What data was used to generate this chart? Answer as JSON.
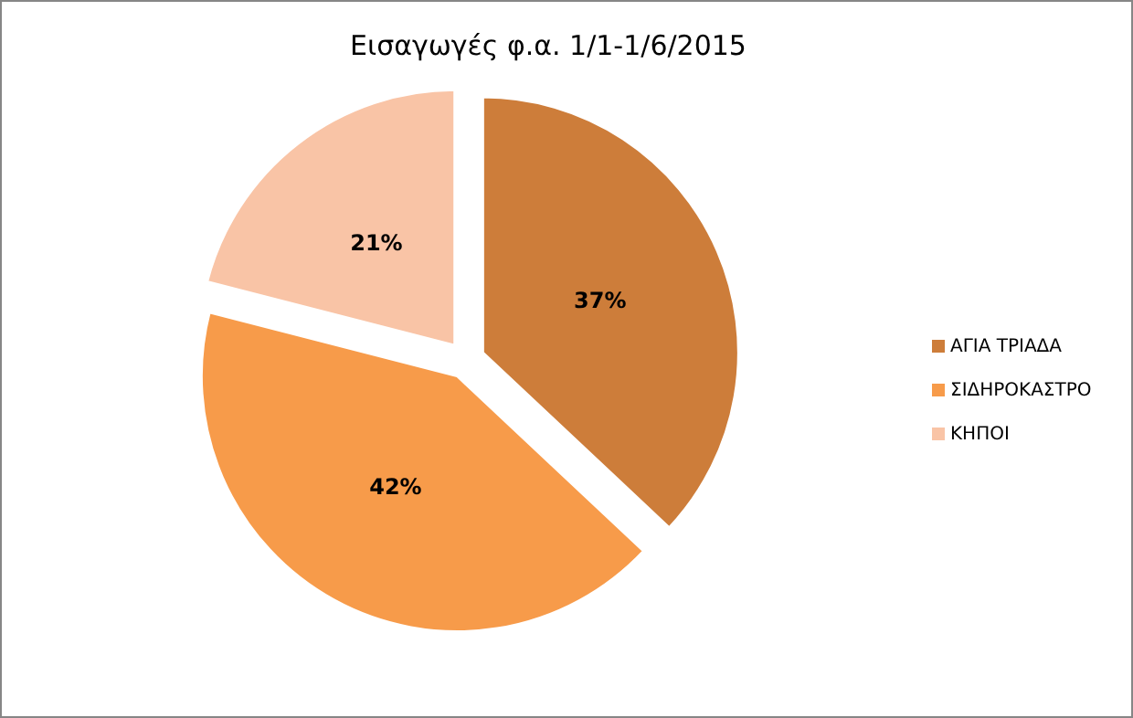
{
  "chart_data": {
    "type": "pie",
    "title": "Εισαγωγές φ.α. 1/1-1/6/2015",
    "categories": [
      "ΑΓΙΑ ΤΡΙΑΔΑ",
      "ΣΙΔΗΡΟΚΑΣΤΡΟ",
      "ΚΗΠΟΙ"
    ],
    "values": [
      37,
      42,
      21
    ],
    "colors": [
      "#cd7d3a",
      "#f79b4a",
      "#f9c4a6"
    ],
    "value_labels": [
      "37%",
      "42%",
      "21%"
    ],
    "legend": "right"
  }
}
